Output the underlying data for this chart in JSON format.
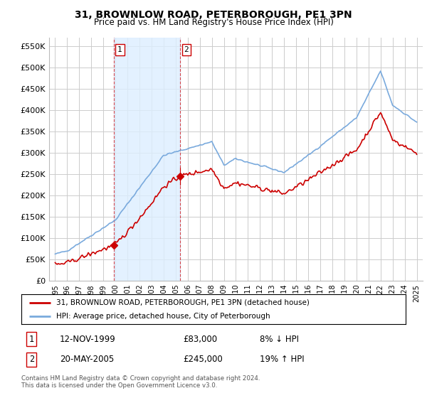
{
  "title": "31, BROWNLOW ROAD, PETERBOROUGH, PE1 3PN",
  "subtitle": "Price paid vs. HM Land Registry's House Price Index (HPI)",
  "legend_line1": "31, BROWNLOW ROAD, PETERBOROUGH, PE1 3PN (detached house)",
  "legend_line2": "HPI: Average price, detached house, City of Peterborough",
  "footnote": "Contains HM Land Registry data © Crown copyright and database right 2024.\nThis data is licensed under the Open Government Licence v3.0.",
  "transaction1_date": "12-NOV-1999",
  "transaction1_price": "£83,000",
  "transaction1_hpi": "8% ↓ HPI",
  "transaction2_date": "20-MAY-2005",
  "transaction2_price": "£245,000",
  "transaction2_hpi": "19% ↑ HPI",
  "sale1_x": 1999.87,
  "sale1_y": 83000,
  "sale2_x": 2005.38,
  "sale2_y": 245000,
  "vline1_x": 1999.87,
  "vline2_x": 2005.38,
  "hpi_color": "#7aaadd",
  "price_color": "#cc0000",
  "vline_color": "#cc0000",
  "shade_color": "#ddeeff",
  "background_color": "#ffffff",
  "grid_color": "#cccccc",
  "ylim": [
    0,
    570000
  ],
  "xlim": [
    1994.5,
    2025.5
  ],
  "yticks": [
    0,
    50000,
    100000,
    150000,
    200000,
    250000,
    300000,
    350000,
    400000,
    450000,
    500000,
    550000
  ],
  "xtick_years": [
    1995,
    1996,
    1997,
    1998,
    1999,
    2000,
    2001,
    2002,
    2003,
    2004,
    2005,
    2006,
    2007,
    2008,
    2009,
    2010,
    2011,
    2012,
    2013,
    2014,
    2015,
    2016,
    2017,
    2018,
    2019,
    2020,
    2021,
    2022,
    2023,
    2024,
    2025
  ]
}
